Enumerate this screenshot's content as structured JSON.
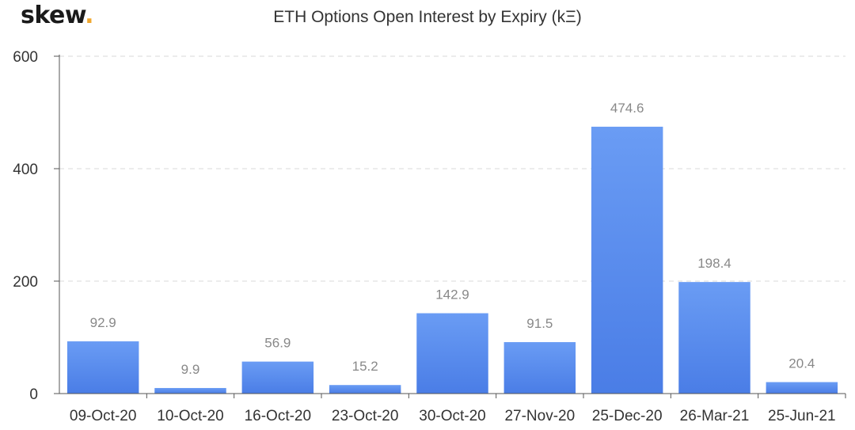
{
  "brand": {
    "name": "skew",
    "dot": "."
  },
  "colors": {
    "bar_top": "#6a9cf4",
    "bar_bottom": "#4a7de6",
    "grid": "#d8d8d8",
    "axis": "#555555",
    "brand_dot": "#f0a830"
  },
  "chart_data": {
    "type": "bar",
    "title": "ETH Options Open Interest by Expiry (kΞ)",
    "xlabel": "",
    "ylabel": "",
    "categories": [
      "09-Oct-20",
      "10-Oct-20",
      "16-Oct-20",
      "23-Oct-20",
      "30-Oct-20",
      "27-Nov-20",
      "25-Dec-20",
      "26-Mar-21",
      "25-Jun-21"
    ],
    "values": [
      92.9,
      9.9,
      56.9,
      15.2,
      142.9,
      91.5,
      474.6,
      198.4,
      20.4
    ],
    "value_labels": [
      "92.9",
      "9.9",
      "56.9",
      "15.2",
      "142.9",
      "91.5",
      "474.6",
      "198.4",
      "20.4"
    ],
    "ylim": [
      0,
      600
    ],
    "yticks": [
      0,
      200,
      400,
      600
    ],
    "ytick_labels": [
      "0",
      "200",
      "400",
      "600"
    ],
    "grid": true,
    "grid_style": "dashed",
    "legend": "none"
  }
}
